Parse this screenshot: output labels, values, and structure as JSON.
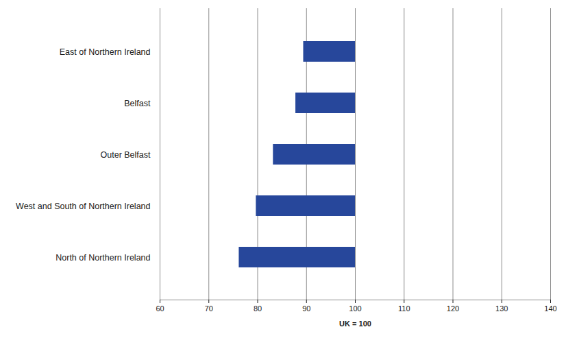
{
  "chart_data": {
    "type": "bar",
    "orientation": "horizontal",
    "categories": [
      "East of Northern Ireland",
      "Belfast",
      "Outer Belfast",
      "West and South of Northern Ireland",
      "North of Northern Ireland"
    ],
    "values": [
      89.4,
      87.8,
      83.2,
      79.7,
      76.2
    ],
    "baseline": 100,
    "color": "#27479b",
    "xlabel": "UK = 100",
    "xlim": [
      60,
      140
    ],
    "xticks": [
      60,
      70,
      80,
      90,
      100,
      110,
      120,
      130,
      140
    ],
    "grid": true
  }
}
